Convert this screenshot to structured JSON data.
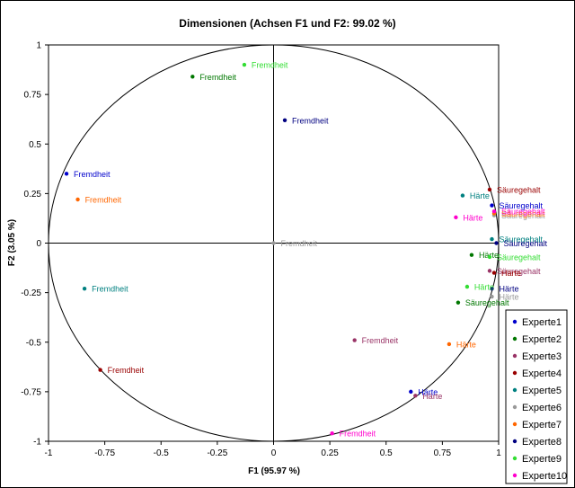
{
  "chart_data": {
    "type": "scatter",
    "title": "Dimensionen (Achsen F1 und F2: 99.02 %)",
    "xlabel": "F1 (95.97 %)",
    "ylabel": "F2 (3.05 %)",
    "xlim": [
      -1,
      1
    ],
    "ylim": [
      -1,
      1
    ],
    "xticks": [
      -1,
      -0.75,
      -0.5,
      -0.25,
      0,
      0.25,
      0.5,
      0.75,
      1
    ],
    "yticks": [
      -1,
      -0.75,
      -0.5,
      -0.25,
      0,
      0.25,
      0.5,
      0.75,
      1
    ],
    "xtick_labels": [
      "-1",
      "-0.75",
      "-0.5",
      "-0.25",
      "0",
      "0.25",
      "0.5",
      "0.75",
      "1"
    ],
    "ytick_labels": [
      "-1",
      "-0.75",
      "-0.5",
      "-0.25",
      "0",
      "0.25",
      "0.5",
      "0.75",
      "1"
    ],
    "unit_circle": true,
    "legend_position": "right",
    "series": [
      {
        "name": "Experte1",
        "color": "#0000cc",
        "points": [
          {
            "label": "Fremdheit",
            "x": -0.92,
            "y": 0.35
          },
          {
            "label": "Säuregehalt",
            "x": 0.97,
            "y": 0.19
          },
          {
            "label": "Härte",
            "x": 0.61,
            "y": -0.75
          }
        ]
      },
      {
        "name": "Experte2",
        "color": "#007700",
        "points": [
          {
            "label": "Fremdheit",
            "x": -0.36,
            "y": 0.84
          },
          {
            "label": "Härte",
            "x": 0.88,
            "y": -0.06
          },
          {
            "label": "Säuregehalt",
            "x": 0.82,
            "y": -0.3
          }
        ]
      },
      {
        "name": "Experte3",
        "color": "#993366",
        "points": [
          {
            "label": "Fremdheit",
            "x": 0.36,
            "y": -0.49
          },
          {
            "label": "Härte",
            "x": 0.63,
            "y": -0.77
          },
          {
            "label": "Säuregehalt",
            "x": 0.96,
            "y": -0.14
          }
        ]
      },
      {
        "name": "Experte4",
        "color": "#990000",
        "points": [
          {
            "label": "Fremdheit",
            "x": -0.77,
            "y": -0.64
          },
          {
            "label": "Säuregehalt",
            "x": 0.96,
            "y": 0.27
          },
          {
            "label": "Härte",
            "x": 0.98,
            "y": -0.15
          }
        ]
      },
      {
        "name": "Experte5",
        "color": "#008080",
        "points": [
          {
            "label": "Fremdheit",
            "x": -0.84,
            "y": -0.23
          },
          {
            "label": "Härte",
            "x": 0.84,
            "y": 0.24
          },
          {
            "label": "Säuregehalt",
            "x": 0.97,
            "y": 0.02
          }
        ]
      },
      {
        "name": "Experte6",
        "color": "#999999",
        "points": [
          {
            "label": "Fremdheit",
            "x": 0.0,
            "y": 0.0
          },
          {
            "label": "Säuregehalt",
            "x": 0.98,
            "y": 0.14
          },
          {
            "label": "Härte",
            "x": 0.97,
            "y": -0.27
          }
        ]
      },
      {
        "name": "Experte7",
        "color": "#ff6600",
        "points": [
          {
            "label": "Fremdheit",
            "x": -0.87,
            "y": 0.22
          },
          {
            "label": "Härte",
            "x": 0.78,
            "y": -0.51
          },
          {
            "label": "Säuregehalt",
            "x": 0.98,
            "y": 0.15
          }
        ]
      },
      {
        "name": "Experte8",
        "color": "#000080",
        "points": [
          {
            "label": "Fremdheit",
            "x": 0.05,
            "y": 0.62
          },
          {
            "label": "Säuregehalt",
            "x": 0.99,
            "y": 0.0
          },
          {
            "label": "Härte",
            "x": 0.97,
            "y": -0.23
          }
        ]
      },
      {
        "name": "Experte9",
        "color": "#33dd33",
        "points": [
          {
            "label": "Fremdheit",
            "x": -0.13,
            "y": 0.9
          },
          {
            "label": "Säuregehalt",
            "x": 0.96,
            "y": -0.07
          },
          {
            "label": "Härte",
            "x": 0.86,
            "y": -0.22
          }
        ]
      },
      {
        "name": "Experte10",
        "color": "#ff00cc",
        "points": [
          {
            "label": "Fremdheit",
            "x": 0.26,
            "y": -0.96
          },
          {
            "label": "Säuregehalt",
            "x": 0.98,
            "y": 0.16
          },
          {
            "label": "Härte",
            "x": 0.81,
            "y": 0.13
          }
        ]
      }
    ]
  }
}
